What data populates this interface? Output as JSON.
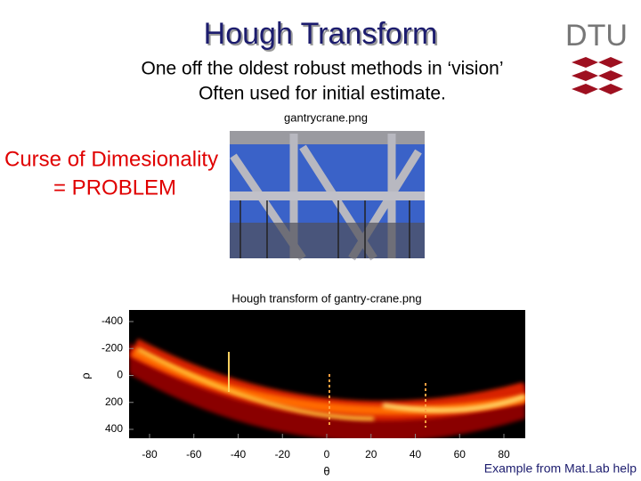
{
  "slide": {
    "title": "Hough Transform",
    "subtitle": [
      "One off the oldest robust methods in ‘vision’",
      "Often used for initial estimate."
    ],
    "logo": "DTU",
    "image_caption": "gantrycrane.png",
    "note": [
      "Curse of Dimesionality",
      "= PROBLEM"
    ],
    "plot": {
      "title": "Hough transform of gantry-crane.png",
      "y_label": "ρ",
      "x_label": "θ",
      "yticks": [
        -400,
        -200,
        0,
        200,
        400
      ],
      "xticks": [
        -80,
        -60,
        -40,
        -20,
        0,
        20,
        40,
        60,
        80
      ]
    },
    "footer": "Example from Mat.Lab help"
  }
}
